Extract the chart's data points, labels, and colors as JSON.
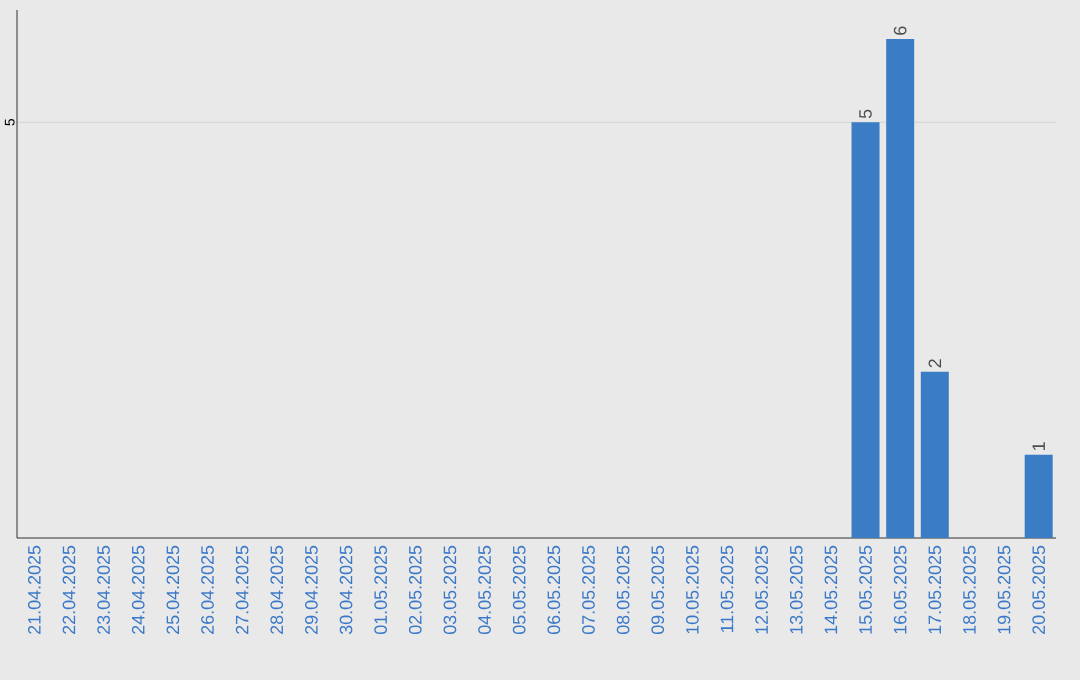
{
  "chart_data": {
    "type": "bar",
    "categories": [
      "21.04.2025",
      "22.04.2025",
      "23.04.2025",
      "24.04.2025",
      "25.04.2025",
      "26.04.2025",
      "27.04.2025",
      "28.04.2025",
      "29.04.2025",
      "30.04.2025",
      "01.05.2025",
      "02.05.2025",
      "03.05.2025",
      "04.05.2025",
      "05.05.2025",
      "06.05.2025",
      "07.05.2025",
      "08.05.2025",
      "09.05.2025",
      "10.05.2025",
      "11.05.2025",
      "12.05.2025",
      "13.05.2025",
      "14.05.2025",
      "15.05.2025",
      "16.05.2025",
      "17.05.2025",
      "18.05.2025",
      "19.05.2025",
      "20.05.2025"
    ],
    "values": [
      null,
      null,
      null,
      null,
      null,
      null,
      null,
      null,
      null,
      null,
      null,
      null,
      null,
      null,
      null,
      null,
      null,
      null,
      null,
      null,
      null,
      null,
      null,
      null,
      5,
      6,
      2,
      null,
      null,
      1
    ],
    "color": "#3b7dc4",
    "ylim": [
      0,
      6.35
    ],
    "yticks": [
      5
    ],
    "grid": "y",
    "data_labels": true
  }
}
